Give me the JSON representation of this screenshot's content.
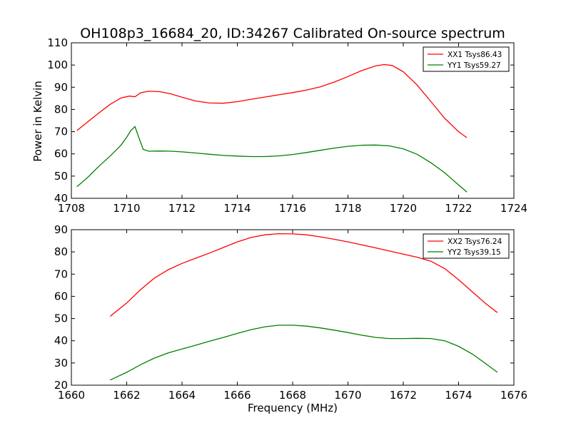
{
  "chart_data": {
    "title": "OH108p3_16684_20, ID:34267 Calibrated On-source spectrum",
    "ylabel": "Power in Kelvin",
    "xlabel": "Frequency (MHz)",
    "panels": [
      {
        "type": "line",
        "xlim": [
          1708,
          1724
        ],
        "ylim": [
          40,
          110
        ],
        "xticks": [
          1708,
          1710,
          1712,
          1714,
          1716,
          1718,
          1720,
          1722,
          1724
        ],
        "yticks": [
          40,
          50,
          60,
          70,
          80,
          90,
          100,
          110
        ],
        "legend_position": "top-right",
        "series": [
          {
            "name": "XX1 Tsys86.43",
            "color": "#ff0000",
            "x": [
              1708.2,
              1708.6,
              1709.0,
              1709.4,
              1709.8,
              1710.1,
              1710.3,
              1710.5,
              1710.8,
              1711.2,
              1711.6,
              1712.0,
              1712.5,
              1713.0,
              1713.5,
              1714.0,
              1714.5,
              1715.0,
              1715.5,
              1716.0,
              1716.5,
              1717.0,
              1717.5,
              1718.0,
              1718.5,
              1719.0,
              1719.3,
              1719.6,
              1720.0,
              1720.5,
              1721.0,
              1721.5,
              1722.0,
              1722.3
            ],
            "y": [
              70.5,
              74.5,
              78.5,
              82.3,
              85.2,
              86.0,
              85.7,
              87.5,
              88.2,
              88.0,
              87.0,
              85.5,
              83.8,
              82.9,
              82.8,
              83.5,
              84.6,
              85.6,
              86.6,
              87.6,
              88.7,
              90.2,
              92.3,
              94.8,
              97.5,
              99.6,
              100.2,
              99.8,
              97.0,
              91.0,
              83.5,
              76.0,
              70.0,
              67.3
            ]
          },
          {
            "name": "YY1 Tsys59.27",
            "color": "#008000",
            "x": [
              1708.2,
              1708.6,
              1709.0,
              1709.4,
              1709.8,
              1710.0,
              1710.15,
              1710.3,
              1710.45,
              1710.6,
              1710.8,
              1711.2,
              1711.6,
              1712.0,
              1712.5,
              1713.0,
              1713.5,
              1714.0,
              1714.5,
              1715.0,
              1715.5,
              1716.0,
              1716.5,
              1717.0,
              1717.5,
              1718.0,
              1718.5,
              1719.0,
              1719.5,
              1720.0,
              1720.5,
              1721.0,
              1721.5,
              1722.0,
              1722.3
            ],
            "y": [
              45.2,
              49.5,
              54.5,
              59.0,
              64.0,
              67.5,
              70.5,
              72.3,
              67.0,
              62.0,
              61.2,
              61.3,
              61.2,
              60.9,
              60.4,
              59.8,
              59.3,
              59.0,
              58.8,
              58.8,
              59.1,
              59.7,
              60.6,
              61.6,
              62.6,
              63.4,
              63.9,
              64.0,
              63.6,
              62.3,
              59.8,
              56.0,
              51.5,
              46.0,
              42.8
            ]
          }
        ]
      },
      {
        "type": "line",
        "xlim": [
          1660,
          1676
        ],
        "ylim": [
          20,
          90
        ],
        "xticks": [
          1660,
          1662,
          1664,
          1666,
          1668,
          1670,
          1672,
          1674,
          1676
        ],
        "yticks": [
          20,
          30,
          40,
          50,
          60,
          70,
          80,
          90
        ],
        "legend_position": "top-right",
        "series": [
          {
            "name": "XX2 Tsys76.24",
            "color": "#ff0000",
            "x": [
              1661.4,
              1662.0,
              1662.5,
              1663.0,
              1663.5,
              1664.0,
              1664.5,
              1665.0,
              1665.5,
              1666.0,
              1666.5,
              1667.0,
              1667.5,
              1668.0,
              1668.5,
              1669.0,
              1669.5,
              1670.0,
              1670.5,
              1671.0,
              1671.5,
              1672.0,
              1672.5,
              1673.0,
              1673.5,
              1674.0,
              1674.5,
              1675.0,
              1675.4
            ],
            "y": [
              51.0,
              57.0,
              63.0,
              68.2,
              72.0,
              74.8,
              77.2,
              79.5,
              82.0,
              84.5,
              86.5,
              87.7,
              88.2,
              88.1,
              87.7,
              86.8,
              85.7,
              84.5,
              83.2,
              81.8,
              80.4,
              79.0,
              77.6,
              75.8,
              72.5,
              67.5,
              62.0,
              56.5,
              52.7
            ]
          },
          {
            "name": "YY2 Tsys39.15",
            "color": "#008000",
            "x": [
              1661.4,
              1662.0,
              1662.5,
              1663.0,
              1663.5,
              1664.0,
              1664.5,
              1665.0,
              1665.5,
              1666.0,
              1666.5,
              1667.0,
              1667.5,
              1668.0,
              1668.5,
              1669.0,
              1669.5,
              1670.0,
              1670.5,
              1671.0,
              1671.5,
              1672.0,
              1672.5,
              1673.0,
              1673.5,
              1674.0,
              1674.5,
              1675.0,
              1675.4
            ],
            "y": [
              22.3,
              25.8,
              29.2,
              32.2,
              34.5,
              36.3,
              38.0,
              39.8,
              41.5,
              43.3,
              45.0,
              46.3,
              47.0,
              47.0,
              46.6,
              45.8,
              44.8,
              43.7,
              42.5,
              41.5,
              41.0,
              41.0,
              41.1,
              41.0,
              40.0,
              37.5,
              34.0,
              29.5,
              25.8
            ]
          }
        ]
      }
    ]
  }
}
